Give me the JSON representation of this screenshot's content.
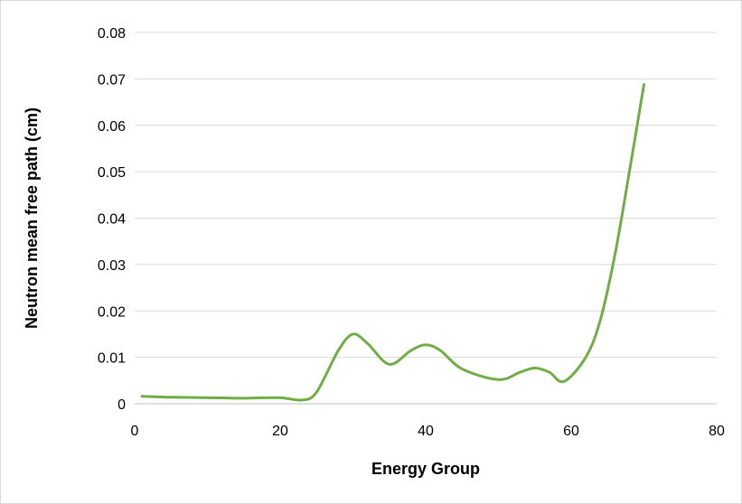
{
  "chart_data": {
    "type": "line",
    "title": "",
    "xlabel": "Energy Group",
    "ylabel": "Neutron mean free path (cm)",
    "xlim": [
      0,
      80
    ],
    "ylim": [
      0,
      0.08
    ],
    "x_ticks": [
      "0",
      "20",
      "40",
      "60",
      "80"
    ],
    "y_ticks": [
      "0",
      "0.01",
      "0.02",
      "0.03",
      "0.04",
      "0.05",
      "0.06",
      "0.07",
      "0.08"
    ],
    "grid": "horizontal",
    "legend": "none",
    "series": [
      {
        "color": "#70ad47",
        "smooth": true,
        "points": [
          [
            1,
            0.0016
          ],
          [
            5,
            0.0014
          ],
          [
            10,
            0.0013
          ],
          [
            15,
            0.0012
          ],
          [
            20,
            0.0013
          ],
          [
            23,
            0.0008
          ],
          [
            25,
            0.0025
          ],
          [
            28,
            0.0115
          ],
          [
            30,
            0.015
          ],
          [
            32,
            0.013
          ],
          [
            35,
            0.0085
          ],
          [
            38,
            0.0115
          ],
          [
            40,
            0.0127
          ],
          [
            42,
            0.0115
          ],
          [
            45,
            0.0075
          ],
          [
            50,
            0.0052
          ],
          [
            53,
            0.0068
          ],
          [
            55,
            0.0077
          ],
          [
            57,
            0.0068
          ],
          [
            59,
            0.0048
          ],
          [
            62,
            0.01
          ],
          [
            64,
            0.018
          ],
          [
            66,
            0.032
          ],
          [
            68,
            0.05
          ],
          [
            70,
            0.0688
          ]
        ]
      }
    ]
  }
}
